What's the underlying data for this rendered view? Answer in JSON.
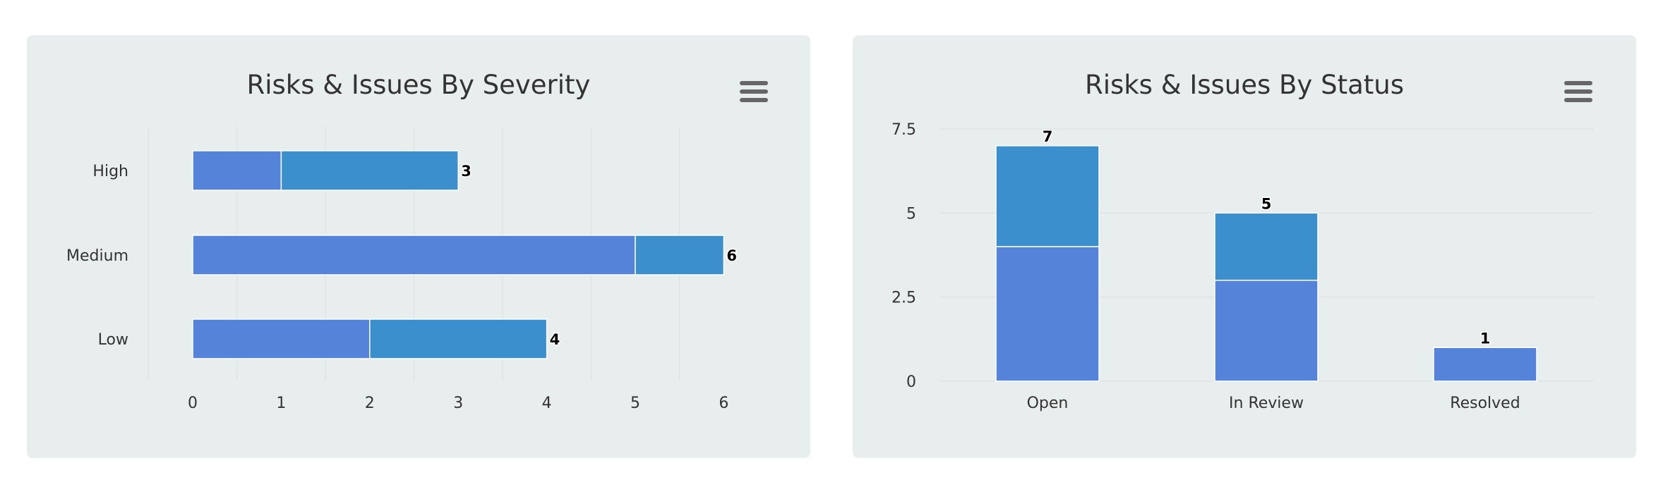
{
  "colors": {
    "series_a": "#5483d9",
    "series_b": "#3a8fcc",
    "panel_bg": "#e8edee",
    "grid": "#dde1e3"
  },
  "menu_icon": "hamburger-menu-icon",
  "chart_data": [
    {
      "type": "bar",
      "orientation": "horizontal",
      "stacked": true,
      "title": "Risks & Issues By Severity",
      "categories": [
        "High",
        "Medium",
        "Low"
      ],
      "series": [
        {
          "values": [
            1,
            5,
            2
          ],
          "color": "#5483d9"
        },
        {
          "values": [
            2,
            1,
            2
          ],
          "color": "#3a8fcc"
        }
      ],
      "totals": [
        3,
        6,
        4
      ],
      "xlim": [
        0,
        6.5
      ],
      "ticks": [
        "0",
        "1",
        "2",
        "3",
        "4",
        "5",
        "6"
      ],
      "grid": true
    },
    {
      "type": "bar",
      "orientation": "vertical",
      "stacked": true,
      "title": "Risks & Issues By Status",
      "categories": [
        "Open",
        "In Review",
        "Resolved"
      ],
      "series": [
        {
          "values": [
            4,
            3,
            1
          ],
          "color": "#5483d9"
        },
        {
          "values": [
            3,
            2,
            0
          ],
          "color": "#3a8fcc"
        }
      ],
      "totals": [
        7,
        5,
        1
      ],
      "ylim": [
        0,
        7.5
      ],
      "ticks": [
        "0",
        "2.5",
        "5",
        "7.5"
      ],
      "grid": true
    }
  ]
}
